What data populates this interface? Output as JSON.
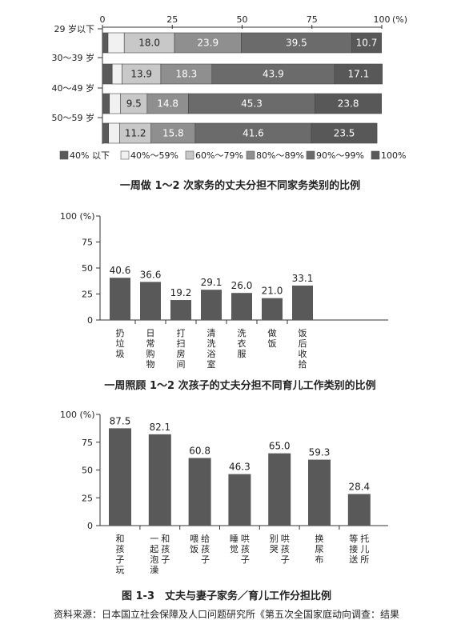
{
  "chart_data": [
    {
      "type": "bar",
      "orientation": "horizontal",
      "stacked": true,
      "title": "",
      "xlim": [
        0,
        100
      ],
      "x_ticks": [
        "0",
        "25",
        "50",
        "75",
        "100"
      ],
      "x_unit": "(%)",
      "categories": [
        "29 岁以下",
        "30～39 岁",
        "40～49 岁",
        "50～59 岁"
      ],
      "series": [
        {
          "name": "40% 以下",
          "values": [
            2.0,
            3.5,
            2.5,
            2.2
          ],
          "color": "#5a5a5a"
        },
        {
          "name": "40%～59%",
          "values": [
            5.8,
            3.5,
            4.0,
            4.0
          ],
          "color": "#f1f1f1"
        },
        {
          "name": "60%～79%",
          "values": [
            18.0,
            13.9,
            9.5,
            11.2
          ],
          "color": "#c8c8c8"
        },
        {
          "name": "80%～89%",
          "values": [
            23.9,
            18.3,
            14.8,
            15.8
          ],
          "color": "#8f8f8f"
        },
        {
          "name": "90%～99%",
          "values": [
            39.5,
            43.9,
            45.3,
            41.6
          ],
          "color": "#6b6b6b"
        },
        {
          "name": "100%",
          "values": [
            10.7,
            17.1,
            23.8,
            23.5
          ],
          "color": "#585858"
        }
      ],
      "labels": [
        [
          "",
          "",
          "18.0",
          "23.9",
          "39.5",
          "10.7"
        ],
        [
          "",
          "",
          "13.9",
          "18.3",
          "43.9",
          "17.1"
        ],
        [
          "",
          "",
          "9.5",
          "14.8",
          "45.3",
          "23.8"
        ],
        [
          "",
          "",
          "11.2",
          "15.8",
          "41.6",
          "23.5"
        ]
      ]
    },
    {
      "type": "bar",
      "title": "一周做 1～2 次家务的丈夫分担不同家务类别的比例",
      "ylim": [
        0,
        100
      ],
      "y_ticks": [
        "0",
        "25",
        "50",
        "75",
        "100 (%)"
      ],
      "categories": [
        "扔垃圾",
        "日常购物",
        "打扫房间",
        "清洗浴室",
        "洗衣服",
        "做饭",
        "饭后收拾"
      ],
      "values": [
        40.6,
        36.6,
        19.2,
        29.1,
        26.0,
        21.0,
        33.1
      ],
      "value_labels": [
        "40.6",
        "36.6",
        "19.2",
        "29.1",
        "26.0",
        "21.0",
        "33.1"
      ],
      "color": "#595959"
    },
    {
      "type": "bar",
      "title": "一周照顾 1～2 次孩子的丈夫分担不同育儿工作类别的比例",
      "ylim": [
        0,
        100
      ],
      "y_ticks": [
        "0",
        "25",
        "50",
        "75",
        "100 (%)"
      ],
      "categories": [
        "和孩子玩",
        "和孩子一起泡澡",
        "给孩子喂饭",
        "哄孩子睡觉",
        "哄孩子别哭",
        "换尿布",
        "托儿所等接送"
      ],
      "value_labels": [
        "87.5",
        "82.1",
        "60.8",
        "46.3",
        "65.0",
        "59.3",
        "28.4"
      ],
      "values": [
        87.5,
        82.1,
        60.8,
        46.3,
        65.0,
        59.3,
        28.4
      ],
      "color": "#595959"
    }
  ],
  "text": {
    "chart1_title": "一周做 1～2 次家务的丈夫分担不同家务类别的比例",
    "chart2_title": "一周照顾 1～2 次孩子的丈夫分担不同育儿工作类别的比例",
    "caption": "图 1-3　丈夫与妻子家务／育儿工作分担比例",
    "source": "资料来源：日本国立社会保障及人口问题研究所《第五次全国家庭动向调查：结果"
  },
  "category_columns": {
    "chart1": [
      [
        "扔垃圾"
      ],
      [
        "日常购物"
      ],
      [
        "打扫房间"
      ],
      [
        "清洗浴室"
      ],
      [
        "洗衣服"
      ],
      [
        "做饭"
      ],
      [
        "饭后收拾"
      ]
    ],
    "chart2": [
      [
        "和孩子玩"
      ],
      [
        "和孩子",
        "一起泡澡"
      ],
      [
        "给孩子",
        "喂饭"
      ],
      [
        "哄孩子",
        "睡觉"
      ],
      [
        "哄孩子",
        "别哭"
      ],
      [
        "换尿布"
      ],
      [
        "托儿所",
        "等接送"
      ]
    ]
  }
}
